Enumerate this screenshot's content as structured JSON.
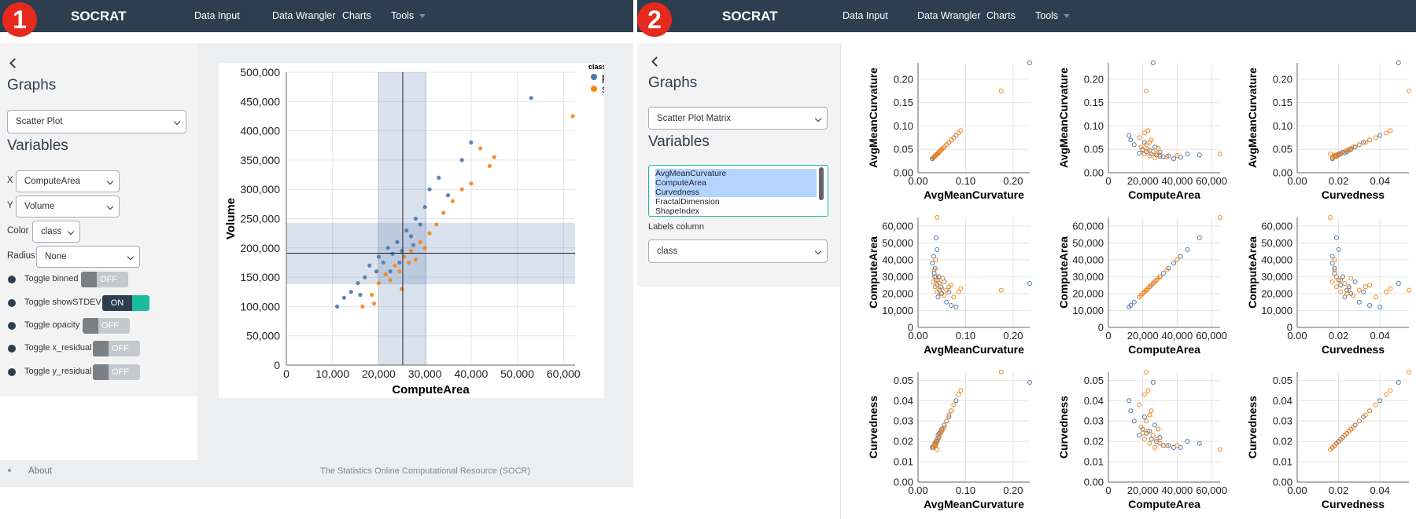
{
  "panels": [
    {
      "badge": "1",
      "navbar": {
        "brand": "SOCRAT",
        "links": [
          "Data Input",
          "Data Wrangler",
          "Charts",
          "Tools"
        ]
      },
      "sidebar": {
        "graphs": "Graphs",
        "graph_type": "Scatter Plot",
        "variables": "Variables",
        "fields": [
          {
            "label": "X",
            "value": "ComputeArea"
          },
          {
            "label": "Y",
            "value": "Volume"
          },
          {
            "label": "Color",
            "value": "class"
          },
          {
            "label": "Radius",
            "value": "None"
          }
        ],
        "toggles": [
          {
            "label": "Toggle binned",
            "state": "OFF"
          },
          {
            "label": "Toggle showSTDEV",
            "state": "ON"
          },
          {
            "label": "Toggle opacity",
            "state": "OFF"
          },
          {
            "label": "Toggle x_residual",
            "state": "OFF"
          },
          {
            "label": "Toggle y_residual",
            "state": "OFF"
          }
        ]
      },
      "chart_data": {
        "type": "scatter",
        "x_label": "ComputeArea",
        "y_label": "Volume",
        "legend_title": "class",
        "xlim": [
          0,
          62500
        ],
        "ylim": [
          0,
          500000
        ],
        "xticks": [
          0,
          {
            "value": 10000,
            "label": "10,000"
          },
          {
            "value": 20000,
            "label": "20,000"
          },
          {
            "value": 30000,
            "label": "30,000"
          },
          {
            "value": 40000,
            "label": "40,000"
          },
          {
            "value": 50000,
            "label": "50,000"
          },
          {
            "value": 60000,
            "label": "60,000"
          }
        ],
        "yticks": [
          0,
          {
            "value": 50000,
            "label": "50,000"
          },
          {
            "value": 100000,
            "label": "100,000"
          },
          {
            "value": 150000,
            "label": "150,000"
          },
          {
            "value": 200000,
            "label": "200,000"
          },
          {
            "value": 250000,
            "label": "250,000"
          },
          {
            "value": 300000,
            "label": "300,000"
          },
          {
            "value": 350000,
            "label": "350,000"
          },
          {
            "value": 400000,
            "label": "400,000"
          },
          {
            "value": 450000,
            "label": "450,000"
          },
          {
            "value": 500000,
            "label": "500,000"
          }
        ],
        "grid": true,
        "stdev": {
          "x_mean": 25200,
          "x_band": [
            19800,
            30400
          ],
          "y_mean": 191000,
          "y_band": [
            138000,
            243000
          ]
        },
        "series": [
          {
            "name": "prolif",
            "color": "#4c78a8",
            "x": [
              11000,
              12500,
              14000,
              15500,
              17000,
              18000,
              19500,
              20000,
              21000,
              22000,
              23000,
              24000,
              25000,
              26000,
              27000,
              28000,
              29000,
              30000,
              31000,
              33000,
              35000,
              38000,
              40000,
              53000,
              16000,
              22500,
              24500,
              27500
            ],
            "y": [
              100000,
              115000,
              125000,
              140000,
              150000,
              170000,
              160000,
              185000,
              175000,
              200000,
              190000,
              210000,
              195000,
              230000,
              220000,
              250000,
              240000,
              270000,
              300000,
              320000,
              290000,
              350000,
              380000,
              456000,
              120000,
              160000,
              175000,
              205000
            ]
          },
          {
            "name": "ss",
            "color": "#f58518",
            "x": [
              16500,
              18500,
              20000,
              21500,
              22500,
              23500,
              24500,
              25500,
              26500,
              27000,
              28000,
              29000,
              30000,
              31000,
              32500,
              34000,
              36000,
              38000,
              40000,
              42000,
              44000,
              45000,
              62000,
              19000,
              25000
            ],
            "y": [
              100000,
              120000,
              140000,
              155000,
              145000,
              170000,
              160000,
              185000,
              175000,
              195000,
              180000,
              210000,
              200000,
              225000,
              240000,
              260000,
              280000,
              300000,
              310000,
              370000,
              340000,
              355000,
              425000,
              105000,
              130000
            ]
          }
        ]
      },
      "footer": {
        "link": "About",
        "text": "The Statistics Online Computational Resource (SOCR)"
      }
    },
    {
      "badge": "2",
      "navbar": {
        "brand": "SOCRAT",
        "links": [
          "Data Input",
          "Data Wrangler",
          "Charts",
          "Tools"
        ]
      },
      "sidebar": {
        "graphs": "Graphs",
        "graph_type": "Scatter Plot Matrix",
        "variables": "Variables",
        "variable_list": [
          "AvgMeanCurvature",
          "ComputeArea",
          "Curvedness",
          "FractalDimension",
          "ShapeIndex"
        ],
        "selected": [
          0,
          1,
          2
        ],
        "labels_column": "Labels column",
        "labels_value": "class"
      },
      "chart_data": {
        "type": "scatter_matrix",
        "dimensions": [
          {
            "name": "AvgMeanCurvature",
            "lim": [
              0,
              0.235
            ],
            "xticks": [
              {
                "value": 0,
                "label": "0.00"
              },
              {
                "value": 0.1,
                "label": "0.10"
              },
              {
                "value": 0.2,
                "label": "0.20"
              }
            ],
            "yticks": [
              {
                "value": 0,
                "label": "0.00"
              },
              {
                "value": 0.05,
                "label": "0.05"
              },
              {
                "value": 0.1,
                "label": "0.10"
              },
              {
                "value": 0.15,
                "label": "0.15"
              },
              {
                "value": 0.2,
                "label": "0.20"
              }
            ]
          },
          {
            "name": "ComputeArea",
            "lim": [
              0,
              65000
            ],
            "xticks": [
              0,
              {
                "value": 20000,
                "label": "20,000"
              },
              {
                "value": 40000,
                "label": "40,000"
              },
              {
                "value": 60000,
                "label": "60,000"
              }
            ],
            "yticks": [
              0,
              {
                "value": 10000,
                "label": "10,000"
              },
              {
                "value": 20000,
                "label": "20,000"
              },
              {
                "value": 30000,
                "label": "30,000"
              },
              {
                "value": 40000,
                "label": "40,000"
              },
              {
                "value": 50000,
                "label": "50,000"
              },
              {
                "value": 60000,
                "label": "60,000"
              }
            ]
          },
          {
            "name": "Curvedness",
            "lim": [
              0,
              0.054
            ],
            "xticks": [
              {
                "value": 0,
                "label": "0.00"
              },
              {
                "value": 0.02,
                "label": "0.02"
              },
              {
                "value": 0.04,
                "label": "0.04"
              }
            ],
            "yticks": [
              {
                "value": 0,
                "label": "0.00"
              },
              {
                "value": 0.01,
                "label": "0.01"
              },
              {
                "value": 0.02,
                "label": "0.02"
              },
              {
                "value": 0.03,
                "label": "0.03"
              },
              {
                "value": 0.04,
                "label": "0.04"
              },
              {
                "value": 0.05,
                "label": "0.05"
              }
            ]
          }
        ],
        "grid": true,
        "series": [
          {
            "color": "#4c78a8",
            "values": [
              [
                0.035,
                30000,
                0.019
              ],
              [
                0.04,
                25000,
                0.021
              ],
              [
                0.045,
                22000,
                0.024
              ],
              [
                0.03,
                38000,
                0.017
              ],
              [
                0.05,
                20000,
                0.026
              ],
              [
                0.038,
                28000,
                0.02
              ],
              [
                0.042,
                18000,
                0.023
              ],
              [
                0.06,
                15000,
                0.03
              ],
              [
                0.033,
                42000,
                0.017
              ],
              [
                0.07,
                13000,
                0.035
              ],
              [
                0.036,
                35000,
                0.018
              ],
              [
                0.048,
                24000,
                0.025
              ],
              [
                0.08,
                12000,
                0.04
              ],
              [
                0.034,
                32000,
                0.018
              ],
              [
                0.055,
                27000,
                0.028
              ],
              [
                0.04,
                46000,
                0.02
              ],
              [
                0.044,
                30000,
                0.022
              ],
              [
                0.065,
                21000,
                0.032
              ],
              [
                0.235,
                26000,
                0.049
              ],
              [
                0.038,
                53000,
                0.019
              ]
            ]
          },
          {
            "color": "#f58518",
            "values": [
              [
                0.032,
                27000,
                0.017
              ],
              [
                0.036,
                24000,
                0.019
              ],
              [
                0.04,
                21000,
                0.021
              ],
              [
                0.045,
                26000,
                0.023
              ],
              [
                0.05,
                23000,
                0.025
              ],
              [
                0.055,
                19000,
                0.027
              ],
              [
                0.038,
                30000,
                0.019
              ],
              [
                0.042,
                28000,
                0.021
              ],
              [
                0.06,
                22000,
                0.03
              ],
              [
                0.07,
                25000,
                0.035
              ],
              [
                0.034,
                34000,
                0.018
              ],
              [
                0.048,
                20000,
                0.024
              ],
              [
                0.09,
                23000,
                0.045
              ],
              [
                0.075,
                18000,
                0.038
              ],
              [
                0.037,
                40000,
                0.018
              ],
              [
                0.052,
                29000,
                0.026
              ],
              [
                0.065,
                24000,
                0.033
              ],
              [
                0.175,
                22000,
                0.054
              ],
              [
                0.04,
                65000,
                0.016
              ],
              [
                0.085,
                21000,
                0.043
              ]
            ]
          }
        ]
      }
    }
  ]
}
